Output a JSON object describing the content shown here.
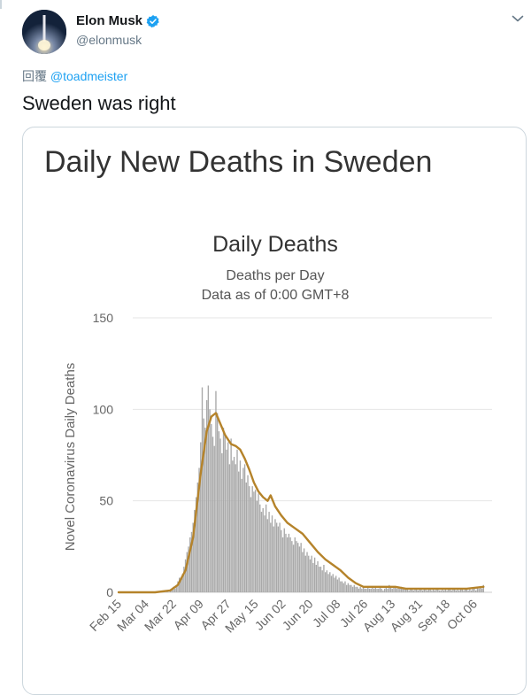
{
  "tweet": {
    "display_name": "Elon Musk",
    "handle": "@elonmusk",
    "reply_prefix": "回覆",
    "reply_to": "@toadmeister",
    "text": "Sweden was right"
  },
  "card": {
    "title": "Daily New Deaths in Sweden"
  },
  "colors": {
    "bars": "#a9a9a9",
    "average_line": "#b5832a",
    "link": "#1da1f2",
    "verified": "#1da1f2"
  },
  "icons": {
    "verified": "verified-badge-icon",
    "caret": "chevron-down-icon"
  },
  "chart_data": {
    "type": "bar",
    "title": "Daily Deaths",
    "subtitle_1": "Deaths per Day",
    "subtitle_2": "Data as of 0:00 GMT+8",
    "ylabel": "Novel Coronavirus Daily Deaths",
    "xlabel": "",
    "ylim": [
      0,
      150
    ],
    "yticks": [
      0,
      50,
      100,
      150
    ],
    "grid": true,
    "x_ticks": [
      "Feb 15",
      "Mar 04",
      "Mar 22",
      "Apr 09",
      "Apr 27",
      "May 15",
      "Jun 02",
      "Jun 20",
      "Jul 08",
      "Jul 26",
      "Aug 13",
      "Aug 31",
      "Sep 18",
      "Oct 06"
    ],
    "series": [
      {
        "kind": "bar",
        "values_by_week": [
          {
            "week_start": "Feb 15",
            "values": [
              0,
              0,
              0,
              0,
              0,
              0,
              0
            ]
          },
          {
            "week_start": "Feb 22",
            "values": [
              0,
              0,
              0,
              0,
              0,
              0,
              0
            ]
          },
          {
            "week_start": "Feb 29",
            "values": [
              0,
              0,
              0,
              0,
              0,
              0,
              0
            ]
          },
          {
            "week_start": "Mar 07",
            "values": [
              0,
              0,
              0,
              0,
              0,
              0,
              0
            ]
          },
          {
            "week_start": "Mar 14",
            "values": [
              0,
              0,
              0,
              0,
              1,
              0,
              1
            ]
          },
          {
            "week_start": "Mar 21",
            "values": [
              2,
              3,
              2,
              4,
              6,
              8,
              7
            ]
          },
          {
            "week_start": "Mar 28",
            "values": [
              10,
              14,
              18,
              22,
              25,
              30,
              33
            ]
          },
          {
            "week_start": "Apr 04",
            "values": [
              38,
              45,
              52,
              60,
              68,
              82,
              112
            ]
          },
          {
            "week_start": "Apr 11",
            "values": [
              95,
              90,
              105,
              113,
              100,
              92,
              85
            ]
          },
          {
            "week_start": "Apr 18",
            "values": [
              80,
              110,
              98,
              88,
              84,
              76,
              90
            ]
          },
          {
            "week_start": "Apr 25",
            "values": [
              86,
              78,
              82,
              70,
              84,
              72,
              74
            ]
          },
          {
            "week_start": "May 02",
            "values": [
              70,
              78,
              66,
              72,
              62,
              68,
              70
            ]
          },
          {
            "week_start": "May 09",
            "values": [
              60,
              64,
              58,
              52,
              58,
              55,
              56
            ]
          },
          {
            "week_start": "May 16",
            "values": [
              50,
              54,
              48,
              44,
              46,
              42,
              48
            ]
          },
          {
            "week_start": "May 23",
            "values": [
              40,
              44,
              38,
              42,
              36,
              40,
              38
            ]
          },
          {
            "week_start": "May 30",
            "values": [
              36,
              38,
              34,
              30,
              35,
              32,
              30
            ]
          },
          {
            "week_start": "Jun 06",
            "values": [
              32,
              30,
              28,
              26,
              30,
              28,
              27
            ]
          },
          {
            "week_start": "Jun 13",
            "values": [
              25,
              27,
              22,
              24,
              20,
              22,
              20
            ]
          },
          {
            "week_start": "Jun 20",
            "values": [
              18,
              20,
              16,
              19,
              15,
              17,
              14
            ]
          },
          {
            "week_start": "Jun 27",
            "values": [
              14,
              12,
              15,
              11,
              12,
              10,
              11
            ]
          },
          {
            "week_start": "Jul 04",
            "values": [
              9,
              10,
              8,
              9,
              7,
              8,
              6
            ]
          },
          {
            "week_start": "Jul 11",
            "values": [
              6,
              5,
              6,
              4,
              5,
              4,
              4
            ]
          },
          {
            "week_start": "Jul 18",
            "values": [
              3,
              4,
              3,
              3,
              2,
              3,
              2
            ]
          },
          {
            "week_start": "Jul 25",
            "values": [
              3,
              2,
              2,
              3,
              2,
              2,
              3
            ]
          },
          {
            "week_start": "Aug 01",
            "values": [
              2,
              3,
              2,
              2,
              3,
              2,
              1
            ]
          },
          {
            "week_start": "Aug 08",
            "values": [
              2,
              3,
              2,
              4,
              3,
              2,
              3
            ]
          },
          {
            "week_start": "Aug 15",
            "values": [
              3,
              2,
              3,
              2,
              3,
              2,
              2
            ]
          },
          {
            "week_start": "Aug 22",
            "values": [
              2,
              2,
              1,
              2,
              2,
              1,
              2
            ]
          },
          {
            "week_start": "Aug 29",
            "values": [
              2,
              1,
              2,
              2,
              1,
              2,
              2
            ]
          },
          {
            "week_start": "Sep 05",
            "values": [
              1,
              2,
              2,
              1,
              2,
              1,
              2
            ]
          },
          {
            "week_start": "Sep 12",
            "values": [
              2,
              1,
              1,
              2,
              1,
              2,
              1
            ]
          },
          {
            "week_start": "Sep 19",
            "values": [
              2,
              2,
              1,
              2,
              2,
              1,
              2
            ]
          },
          {
            "week_start": "Sep 26",
            "values": [
              1,
              2,
              2,
              1,
              2,
              2,
              1
            ]
          },
          {
            "week_start": "Oct 03",
            "values": [
              2,
              1,
              2,
              2,
              1,
              3,
              2
            ]
          },
          {
            "week_start": "Oct 10",
            "values": [
              3,
              2,
              4
            ]
          }
        ]
      },
      {
        "kind": "line",
        "color": "#b5832a",
        "points": [
          [
            "Feb 15",
            0
          ],
          [
            "Mar 10",
            0
          ],
          [
            "Mar 20",
            1
          ],
          [
            "Mar 25",
            4
          ],
          [
            "Mar 30",
            12
          ],
          [
            "Apr 04",
            30
          ],
          [
            "Apr 09",
            65
          ],
          [
            "Apr 13",
            88
          ],
          [
            "Apr 16",
            96
          ],
          [
            "Apr 19",
            98
          ],
          [
            "Apr 22",
            92
          ],
          [
            "Apr 25",
            86
          ],
          [
            "Apr 29",
            81
          ],
          [
            "May 02",
            80
          ],
          [
            "May 05",
            78
          ],
          [
            "May 08",
            73
          ],
          [
            "May 11",
            67
          ],
          [
            "May 14",
            60
          ],
          [
            "May 17",
            55
          ],
          [
            "May 20",
            52
          ],
          [
            "May 23",
            50
          ],
          [
            "May 25",
            53
          ],
          [
            "May 28",
            47
          ],
          [
            "Jun 01",
            42
          ],
          [
            "Jun 05",
            38
          ],
          [
            "Jun 10",
            35
          ],
          [
            "Jun 15",
            32
          ],
          [
            "Jun 20",
            27
          ],
          [
            "Jun 25",
            22
          ],
          [
            "Jun 30",
            18
          ],
          [
            "Jul 05",
            15
          ],
          [
            "Jul 10",
            12
          ],
          [
            "Jul 15",
            8
          ],
          [
            "Jul 20",
            5
          ],
          [
            "Jul 25",
            3
          ],
          [
            "Aug 01",
            3
          ],
          [
            "Aug 08",
            3
          ],
          [
            "Aug 15",
            3
          ],
          [
            "Aug 22",
            2
          ],
          [
            "Aug 31",
            2
          ],
          [
            "Sep 10",
            2
          ],
          [
            "Sep 20",
            2
          ],
          [
            "Oct 01",
            2
          ],
          [
            "Oct 12",
            3
          ]
        ]
      }
    ]
  }
}
